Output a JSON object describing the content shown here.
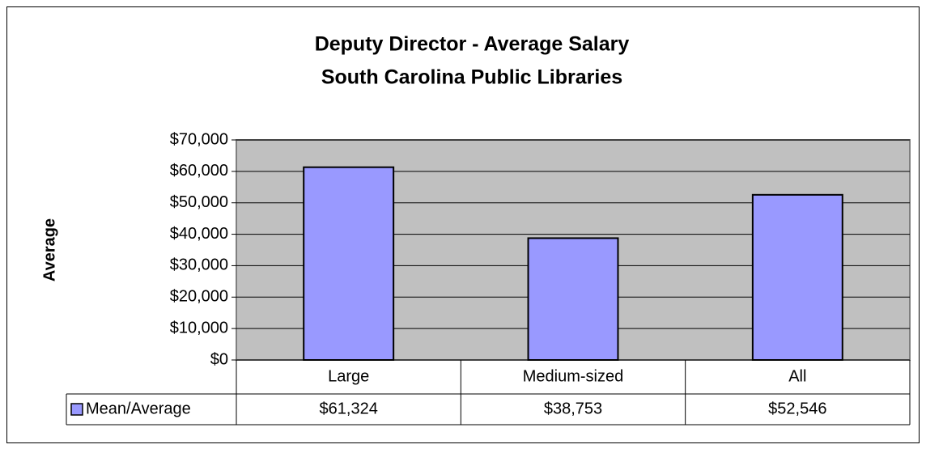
{
  "chart_data": {
    "type": "bar",
    "title": "Deputy Director - Average Salary",
    "subtitle": "South Carolina Public Libraries",
    "y_label": "Average",
    "categories": [
      "Large",
      "Medium-sized",
      "All"
    ],
    "series": [
      {
        "name": "Mean/Average",
        "color": "#9999ff",
        "values": [
          61324,
          38753,
          52546
        ],
        "value_labels": [
          "$61,324",
          "$38,753",
          "$52,546"
        ]
      }
    ],
    "ylim": [
      0,
      70000
    ],
    "yticks": [
      {
        "value": 0,
        "label": "$0"
      },
      {
        "value": 10000,
        "label": "$10,000"
      },
      {
        "value": 20000,
        "label": "$20,000"
      },
      {
        "value": 30000,
        "label": "$30,000"
      },
      {
        "value": 40000,
        "label": "$40,000"
      },
      {
        "value": 50000,
        "label": "$50,000"
      },
      {
        "value": 60000,
        "label": "$60,000"
      },
      {
        "value": 70000,
        "label": "$70,000"
      }
    ],
    "grid": true
  }
}
